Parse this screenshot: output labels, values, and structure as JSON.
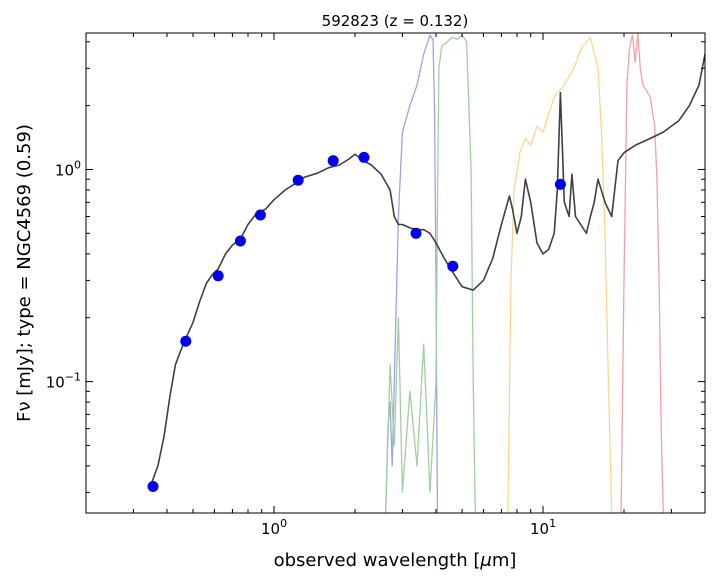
{
  "chart_data": {
    "type": "line",
    "title": "592823 (z = 0.132)",
    "xlabel": "observed wavelength [μm]",
    "ylabel": "Fν [mJy];  type = NGC4569 (0.59)",
    "xscale": "log",
    "yscale": "log",
    "xlim": [
      0.2,
      40
    ],
    "ylim": [
      0.024,
      4.4
    ],
    "x_tick_labels": [
      {
        "value": 1,
        "base": "10",
        "exp": "0"
      },
      {
        "value": 10,
        "base": "10",
        "exp": "1"
      }
    ],
    "y_tick_labels": [
      {
        "value": 0.1,
        "base": "10",
        "exp": "−1"
      },
      {
        "value": 1,
        "base": "10",
        "exp": "0"
      }
    ],
    "grid": false,
    "series": [
      {
        "role": "model-sed",
        "color": "#404040",
        "x": [
          0.35,
          0.37,
          0.39,
          0.41,
          0.43,
          0.45,
          0.47,
          0.5,
          0.53,
          0.56,
          0.59,
          0.62,
          0.66,
          0.7,
          0.75,
          0.8,
          0.86,
          0.93,
          1.0,
          1.1,
          1.2,
          1.3,
          1.45,
          1.6,
          1.75,
          1.9,
          2.0,
          2.15,
          2.3,
          2.5,
          2.7,
          2.8,
          2.9,
          3.0,
          3.2,
          3.4,
          3.6,
          3.8,
          4.0,
          4.3,
          4.6,
          5.0,
          5.5,
          6.0,
          6.5,
          7.0,
          7.5,
          7.7,
          8.0,
          8.3,
          8.6,
          9.0,
          9.5,
          10.0,
          10.5,
          11.0,
          11.3,
          11.6,
          12.0,
          12.5,
          12.8,
          13.2,
          13.8,
          14.5,
          15.0,
          15.5,
          16.0,
          17.0,
          18.0,
          19.0,
          20.0,
          22.0,
          25.0,
          28.0,
          32.0,
          35.0,
          38.0,
          40.0
        ],
        "y": [
          0.033,
          0.04,
          0.055,
          0.085,
          0.12,
          0.14,
          0.16,
          0.19,
          0.24,
          0.29,
          0.32,
          0.34,
          0.4,
          0.44,
          0.47,
          0.55,
          0.62,
          0.65,
          0.72,
          0.8,
          0.86,
          0.92,
          0.96,
          1.02,
          1.05,
          1.12,
          1.18,
          1.1,
          1.05,
          0.95,
          0.8,
          0.6,
          0.55,
          0.55,
          0.53,
          0.52,
          0.52,
          0.5,
          0.45,
          0.38,
          0.33,
          0.28,
          0.27,
          0.3,
          0.38,
          0.55,
          0.75,
          0.65,
          0.5,
          0.6,
          0.9,
          0.7,
          0.45,
          0.4,
          0.42,
          0.5,
          0.8,
          2.3,
          0.7,
          0.6,
          0.95,
          0.6,
          0.55,
          0.5,
          0.6,
          0.7,
          0.9,
          0.7,
          0.6,
          1.1,
          1.2,
          1.3,
          1.4,
          1.5,
          1.7,
          2.0,
          2.5,
          3.5
        ]
      },
      {
        "role": "filter-curve",
        "color": "#a0a0ee",
        "x": [
          2.6,
          2.65,
          2.7,
          2.75,
          2.8,
          2.9,
          3.0,
          3.2,
          3.4,
          3.6,
          3.8,
          3.9,
          3.95,
          4.0,
          4.05
        ],
        "y": [
          0.024,
          0.06,
          0.08,
          0.04,
          0.1,
          0.6,
          1.5,
          2.0,
          2.5,
          3.5,
          4.3,
          4.1,
          2.0,
          0.3,
          0.024
        ]
      },
      {
        "role": "filter-curve",
        "color": "#9fd09f",
        "x": [
          2.6,
          2.7,
          2.8,
          2.9,
          3.0,
          3.2,
          3.4,
          3.6,
          3.8,
          4.0,
          4.05,
          4.1,
          4.2,
          4.4,
          4.6,
          4.8,
          5.0,
          5.2,
          5.4,
          5.5,
          5.6
        ],
        "y": [
          0.024,
          0.12,
          0.05,
          0.2,
          0.03,
          0.09,
          0.04,
          0.15,
          0.03,
          0.1,
          0.6,
          3.0,
          3.8,
          4.0,
          4.2,
          4.1,
          4.3,
          4.0,
          1.0,
          0.1,
          0.024
        ]
      },
      {
        "role": "filter-curve",
        "color": "#ffd48c",
        "x": [
          7.4,
          7.6,
          7.8,
          8.2,
          8.6,
          9.0,
          9.5,
          10.0,
          11.0,
          12.0,
          13.0,
          14.0,
          15.0,
          16.0,
          16.5,
          17.0,
          17.5,
          18.0
        ],
        "y": [
          0.024,
          0.3,
          0.8,
          1.2,
          1.4,
          1.3,
          1.6,
          1.5,
          2.2,
          2.5,
          3.0,
          3.8,
          4.2,
          3.0,
          1.5,
          0.5,
          0.1,
          0.024
        ]
      },
      {
        "role": "filter-curve",
        "color": "#f5a0a0",
        "x": [
          19.5,
          20.0,
          20.5,
          21.0,
          21.5,
          22.0,
          22.5,
          23.0,
          23.5,
          24.0,
          25.0,
          26.0,
          26.5,
          27.0,
          27.5,
          28.0
        ],
        "y": [
          0.024,
          0.3,
          2.5,
          3.8,
          4.3,
          3.2,
          4.4,
          3.0,
          2.5,
          2.4,
          2.2,
          1.6,
          0.9,
          0.3,
          0.06,
          0.024
        ]
      }
    ],
    "points": {
      "color": "#0000ee",
      "x": [
        0.355,
        0.47,
        0.62,
        0.75,
        0.89,
        1.23,
        1.66,
        2.16,
        3.37,
        4.62,
        11.6
      ],
      "y": [
        0.032,
        0.155,
        0.315,
        0.46,
        0.61,
        0.89,
        1.1,
        1.14,
        0.5,
        0.35,
        0.85
      ]
    }
  }
}
